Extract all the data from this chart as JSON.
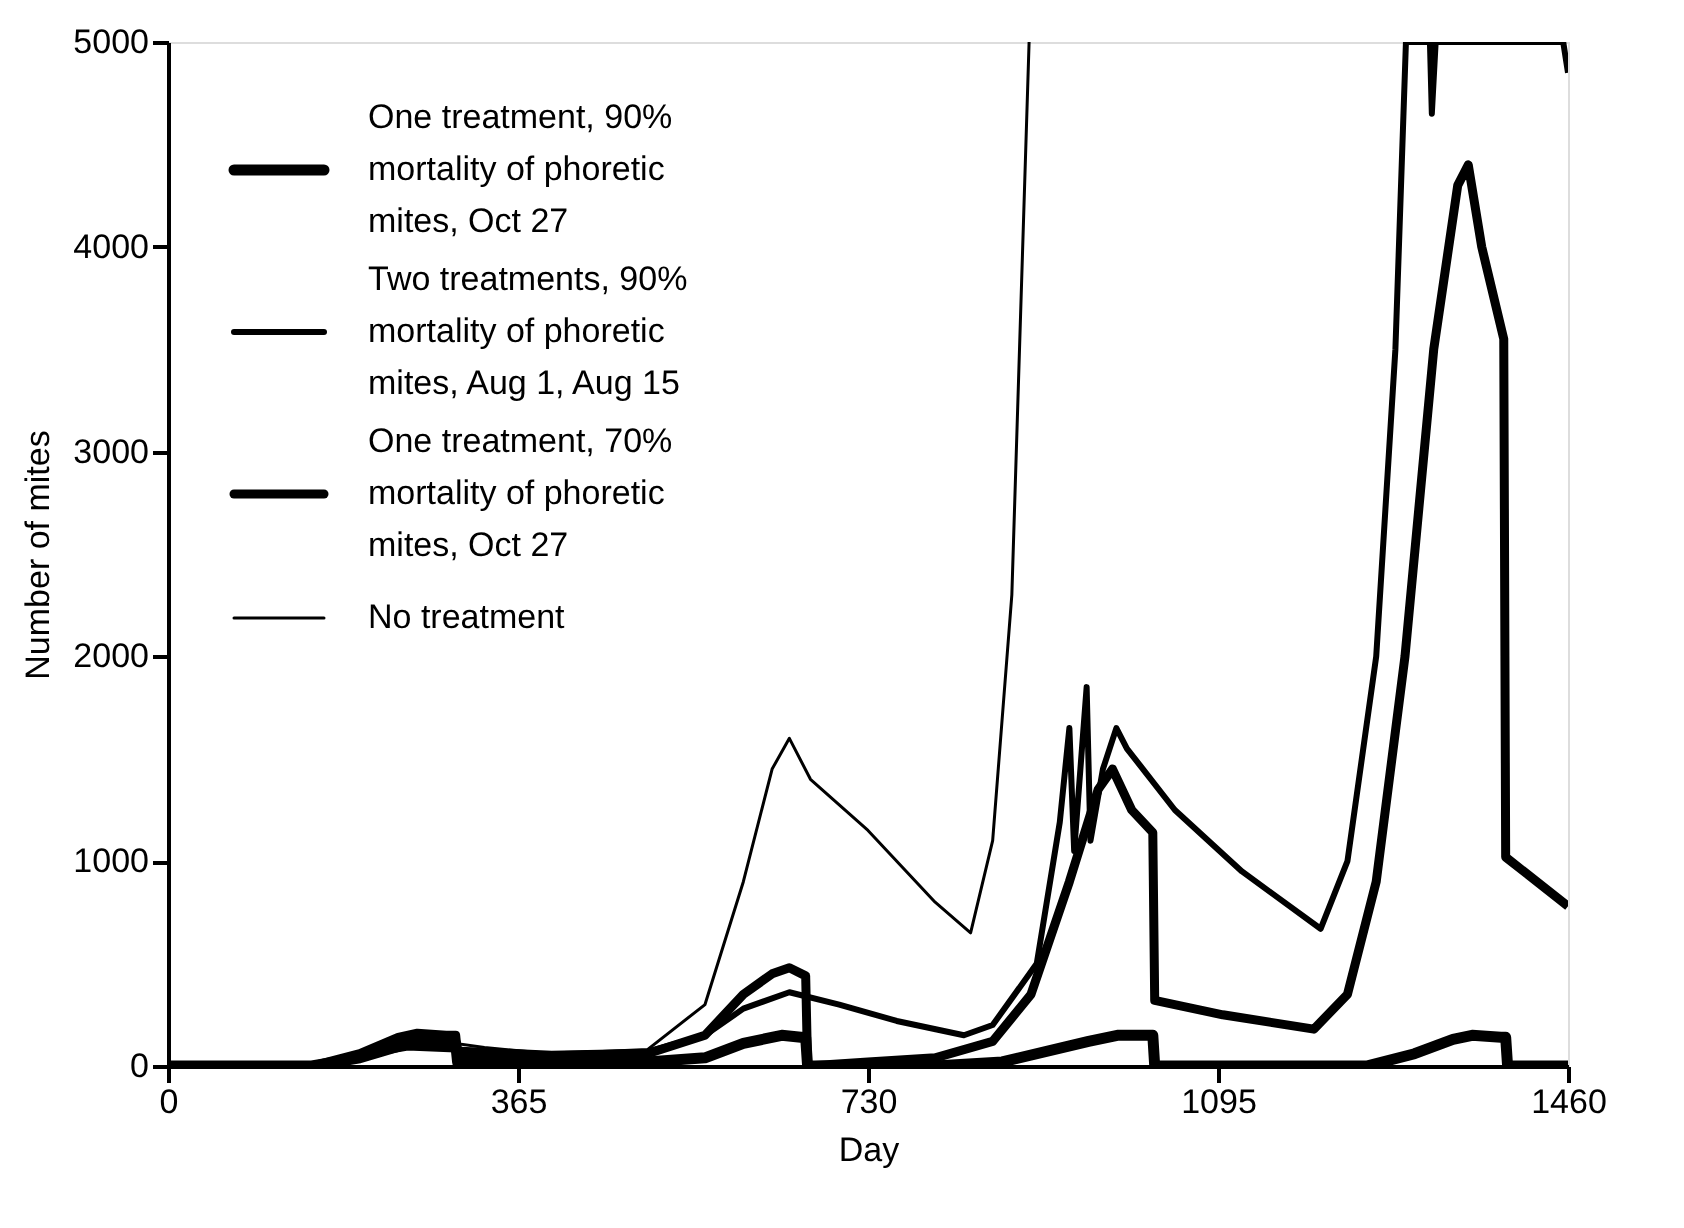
{
  "chart_data": {
    "type": "line",
    "xlabel": "Day",
    "ylabel": "Number of mites",
    "xlim": [
      0,
      1460
    ],
    "ylim": [
      0,
      5000
    ],
    "xticks": [
      0,
      365,
      730,
      1095,
      1460
    ],
    "yticks": [
      0,
      1000,
      2000,
      3000,
      4000,
      5000
    ],
    "grid": false,
    "legend": "top left",
    "marker": "none",
    "line_style": "solid",
    "series": [
      {
        "name": "One treatment, 90% mortality of phoretic mites, Oct 27",
        "color": "#000000",
        "x": [
          0,
          150,
          200,
          250,
          270,
          300,
          302,
          400,
          500,
          560,
          600,
          640,
          660,
          665,
          667,
          730,
          800,
          870,
          960,
          990,
          1020,
          1027,
          1029,
          1100,
          1200,
          1250,
          1300,
          1340,
          1360,
          1390,
          1395,
          1397,
          1460
        ],
        "values": [
          0,
          0,
          40,
          110,
          120,
          110,
          20,
          20,
          20,
          40,
          110,
          150,
          140,
          140,
          0,
          0,
          0,
          20,
          120,
          150,
          150,
          150,
          0,
          0,
          0,
          0,
          60,
          130,
          150,
          140,
          140,
          0,
          0
        ]
      },
      {
        "name": "Two treatments, 90% mortality of phoretic mites, Aug 1, Aug 15",
        "color": "#000000",
        "x": [
          0,
          150,
          213,
          250,
          300,
          400,
          500,
          560,
          600,
          648,
          700,
          760,
          830,
          860,
          906,
          930,
          940,
          945,
          958,
          962,
          975,
          989,
          1000,
          1050,
          1120,
          1202,
          1230,
          1260,
          1280,
          1291,
          1316,
          1318,
          1322,
          1455,
          1460
        ],
        "values": [
          0,
          0,
          60,
          90,
          80,
          60,
          70,
          150,
          280,
          360,
          300,
          220,
          150,
          200,
          500,
          1190,
          1650,
          1050,
          1850,
          1100,
          1450,
          1650,
          1550,
          1250,
          950,
          670,
          1000,
          2000,
          3500,
          5000,
          5000,
          4650,
          5000,
          5000,
          4850
        ]
      },
      {
        "name": "One treatment, 70% mortality of phoretic mites, Oct 27",
        "color": "#000000",
        "x": [
          0,
          150,
          200,
          240,
          260,
          290,
          300,
          302,
          400,
          500,
          560,
          600,
          630,
          648,
          665,
          667,
          730,
          800,
          860,
          900,
          940,
          970,
          985,
          1005,
          1027,
          1029,
          1100,
          1195,
          1230,
          1260,
          1290,
          1320,
          1345,
          1356,
          1370,
          1393,
          1395,
          1460
        ],
        "values": [
          0,
          0,
          60,
          140,
          160,
          150,
          150,
          60,
          50,
          60,
          150,
          350,
          450,
          480,
          440,
          0,
          20,
          40,
          120,
          350,
          900,
          1350,
          1450,
          1250,
          1140,
          320,
          250,
          180,
          350,
          900,
          2000,
          3500,
          4300,
          4400,
          4000,
          3550,
          1020,
          780
        ]
      },
      {
        "name": "No treatment",
        "color": "#000000",
        "x": [
          0,
          150,
          230,
          270,
          330,
          400,
          500,
          560,
          600,
          630,
          648,
          670,
          730,
          800,
          837,
          860,
          880,
          898
        ],
        "values": [
          0,
          0,
          80,
          130,
          90,
          60,
          80,
          300,
          900,
          1450,
          1600,
          1400,
          1150,
          800,
          650,
          1100,
          2300,
          5000
        ]
      }
    ]
  }
}
